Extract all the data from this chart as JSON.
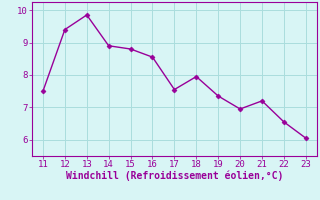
{
  "x": [
    11,
    12,
    13,
    14,
    15,
    16,
    17,
    18,
    19,
    20,
    21,
    22,
    23
  ],
  "y": [
    7.5,
    9.4,
    9.85,
    8.9,
    8.8,
    8.55,
    7.55,
    7.95,
    7.35,
    6.95,
    7.2,
    6.55,
    6.05
  ],
  "line_color": "#990099",
  "marker": "D",
  "marker_size": 2.5,
  "background_color": "#d8f5f5",
  "grid_color": "#aadddd",
  "xlabel": "Windchill (Refroidissement éolien,°C)",
  "xlabel_color": "#990099",
  "tick_color": "#990099",
  "spine_color": "#990099",
  "xlim": [
    10.5,
    23.5
  ],
  "ylim": [
    5.5,
    10.25
  ],
  "xticks": [
    11,
    12,
    13,
    14,
    15,
    16,
    17,
    18,
    19,
    20,
    21,
    22,
    23
  ],
  "yticks": [
    6,
    7,
    8,
    9,
    10
  ],
  "tick_fontsize": 6.5,
  "xlabel_fontsize": 7.0,
  "linewidth": 1.0
}
